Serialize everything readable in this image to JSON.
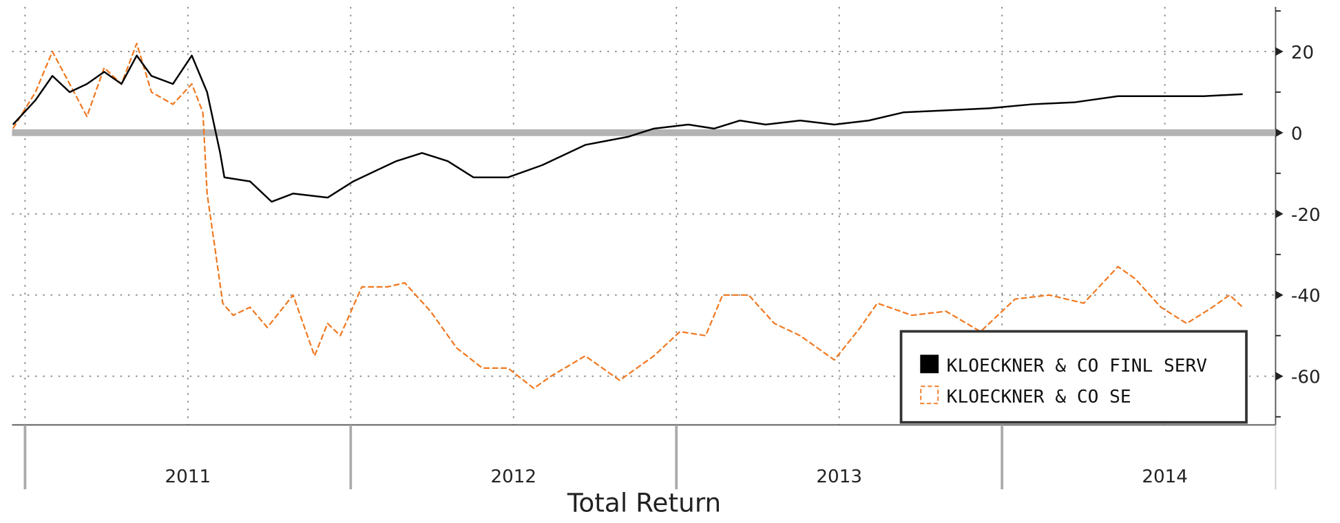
{
  "chart_data": {
    "type": "line",
    "x_label": "Total Return",
    "xlim": [
      2010.96,
      2014.84
    ],
    "ylim": [
      -72,
      31
    ],
    "yticks": [
      20,
      0,
      -20,
      -40,
      -60
    ],
    "yminor": [
      30,
      10,
      -10,
      -30,
      -50,
      -70
    ],
    "xgrid": [
      2011,
      2011.5,
      2012,
      2012.5,
      2013,
      2013.5,
      2014,
      2014.5
    ],
    "year_boundaries": [
      2011,
      2012,
      2013,
      2014
    ],
    "xticks": [
      {
        "value": 2011.5,
        "label": "2011"
      },
      {
        "value": 2012.5,
        "label": "2012"
      },
      {
        "value": 2013.5,
        "label": "2013"
      },
      {
        "value": 2014.5,
        "label": "2014"
      }
    ],
    "zero_line": true,
    "grid": true,
    "legend": "lower right",
    "series": [
      {
        "name": "KLOECKNER & CO FINL SERV",
        "color": "#000000",
        "dashed": false,
        "x": [
          2010.963,
          2011.032,
          2011.084,
          2011.137,
          2011.19,
          2011.243,
          2011.296,
          2011.343,
          2011.388,
          2011.454,
          2011.512,
          2011.559,
          2011.599,
          2011.612,
          2011.691,
          2011.757,
          2011.823,
          2011.929,
          2012.008,
          2012.087,
          2012.14,
          2012.219,
          2012.298,
          2012.377,
          2012.483,
          2012.588,
          2012.72,
          2012.852,
          2012.931,
          2013.037,
          2013.116,
          2013.195,
          2013.274,
          2013.38,
          2013.485,
          2013.591,
          2013.697,
          2013.828,
          2013.96,
          2014.092,
          2014.224,
          2014.356,
          2014.488,
          2014.62,
          2014.739
        ],
        "values": [
          2,
          8,
          14,
          10,
          12,
          15,
          12,
          19,
          14,
          12,
          19,
          10,
          -5,
          -11,
          -12,
          -17,
          -15,
          -16,
          -12,
          -9,
          -7,
          -5,
          -7,
          -11,
          -11,
          -8,
          -3,
          -1,
          1,
          2,
          1,
          3,
          2,
          3,
          2,
          3,
          5,
          5.5,
          6,
          7,
          7.5,
          9,
          9,
          9,
          9.5
        ]
      },
      {
        "name": "KLOECKNER & CO SE",
        "color": "#f07820",
        "dashed": true,
        "x": [
          2010.963,
          2011.032,
          2011.084,
          2011.137,
          2011.19,
          2011.243,
          2011.296,
          2011.343,
          2011.388,
          2011.454,
          2011.512,
          2011.546,
          2011.559,
          2011.586,
          2011.607,
          2011.639,
          2011.691,
          2011.744,
          2011.823,
          2011.889,
          2011.929,
          2011.968,
          2012.034,
          2012.113,
          2012.166,
          2012.245,
          2012.325,
          2012.404,
          2012.483,
          2012.562,
          2012.615,
          2012.72,
          2012.826,
          2012.931,
          2013.011,
          2013.09,
          2013.142,
          2013.222,
          2013.301,
          2013.38,
          2013.485,
          2013.565,
          2013.617,
          2013.723,
          2013.828,
          2013.934,
          2014.04,
          2014.145,
          2014.251,
          2014.356,
          2014.409,
          2014.488,
          2014.567,
          2014.646,
          2014.699,
          2014.739
        ],
        "values": [
          1,
          10,
          20,
          12,
          4,
          16,
          12,
          22,
          10,
          7,
          12,
          5,
          -15,
          -30,
          -42,
          -45,
          -43,
          -48,
          -40,
          -55,
          -47,
          -50,
          -38,
          -38,
          -37,
          -44,
          -53,
          -58,
          -58,
          -63,
          -60,
          -55,
          -61,
          -55,
          -49,
          -50,
          -40,
          -40,
          -47,
          -50,
          -56,
          -48,
          -42,
          -45,
          -44,
          -49,
          -41,
          -40,
          -42,
          -33,
          -36,
          -43,
          -47,
          -43,
          -40,
          -43
        ]
      }
    ]
  }
}
